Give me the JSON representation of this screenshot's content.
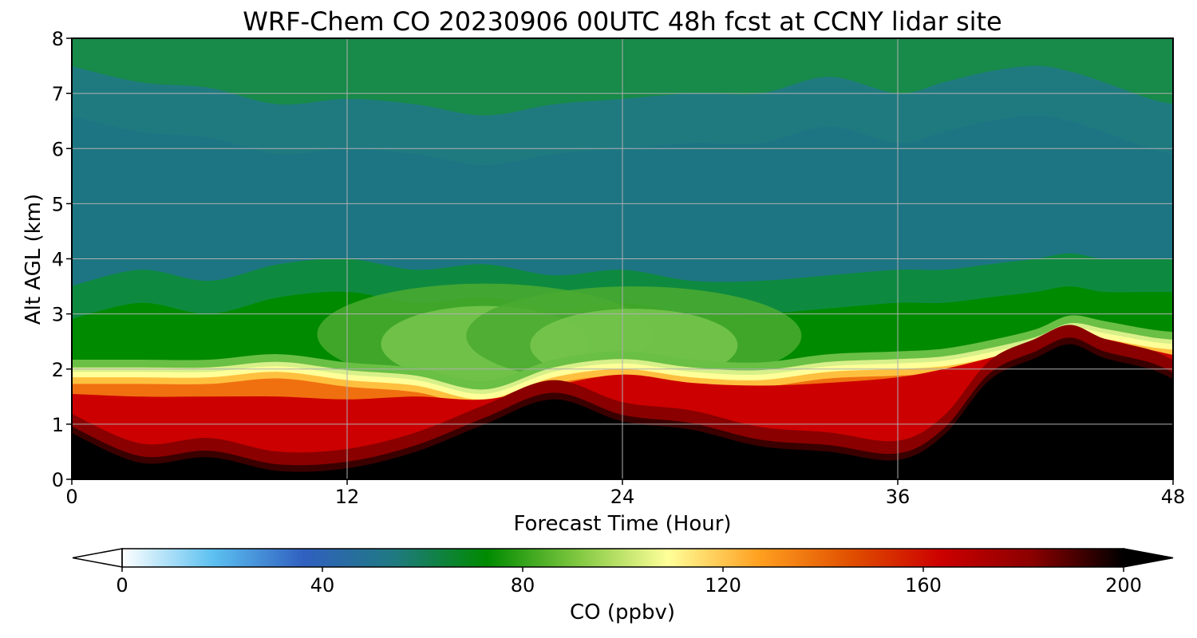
{
  "chart_data": {
    "type": "heatmap",
    "title": "WRF-Chem CO  20230906 00UTC 48h fcst at CCNY lidar site",
    "xlabel": "Forecast Time (Hour)",
    "ylabel": "Alt AGL (km)",
    "xlim": [
      0,
      48
    ],
    "ylim": [
      0,
      8
    ],
    "x_ticks": [
      "0",
      "12",
      "24",
      "36",
      "48"
    ],
    "y_ticks": [
      "0",
      "1",
      "2",
      "3",
      "4",
      "5",
      "6",
      "7",
      "8"
    ],
    "grid": true,
    "colorbar": {
      "label": "CO  (ppbv)",
      "range": [
        0,
        200
      ],
      "ticks": [
        "0",
        "40",
        "80",
        "120",
        "160",
        "200"
      ],
      "extend": "both",
      "colors": [
        "#ffffff",
        "#5cc0f0",
        "#3060c0",
        "#1f7a80",
        "#008a00",
        "#80c840",
        "#ffff99",
        "#ffa020",
        "#e05000",
        "#cc0000",
        "#8a0000",
        "#000000"
      ]
    },
    "profile": {
      "hours": [
        0,
        3,
        6,
        9,
        12,
        15,
        18,
        21,
        24,
        27,
        30,
        33,
        36,
        38,
        40,
        42,
        43.5,
        45,
        47,
        48
      ],
      "black_top": [
        0.85,
        0.3,
        0.4,
        0.15,
        0.2,
        0.5,
        1.0,
        1.45,
        1.05,
        0.9,
        0.6,
        0.5,
        0.35,
        0.8,
        1.8,
        2.2,
        2.45,
        2.2,
        2.0,
        1.8
      ],
      "red_top": [
        1.55,
        1.5,
        1.5,
        1.5,
        1.45,
        1.5,
        1.45,
        1.7,
        1.9,
        1.75,
        1.7,
        1.75,
        1.85,
        2.0,
        2.2,
        2.45,
        2.65,
        2.55,
        2.35,
        2.25
      ],
      "boundary": [
        1.95,
        1.95,
        1.95,
        2.05,
        1.9,
        1.8,
        1.55,
        1.95,
        2.1,
        1.95,
        1.9,
        2.05,
        2.1,
        2.15,
        2.3,
        2.5,
        2.75,
        2.65,
        2.5,
        2.45
      ],
      "green_top": [
        2.9,
        3.2,
        3.0,
        3.3,
        3.4,
        3.2,
        3.3,
        3.1,
        3.2,
        3.0,
        3.0,
        3.1,
        3.2,
        3.2,
        3.3,
        3.4,
        3.5,
        3.4,
        3.4,
        3.4
      ],
      "teal_top": [
        7.5,
        7.2,
        7.1,
        6.8,
        6.9,
        6.8,
        6.6,
        6.8,
        6.9,
        7.0,
        7.0,
        7.3,
        7.0,
        7.2,
        7.4,
        7.5,
        7.4,
        7.2,
        6.9,
        6.8
      ],
      "lightgreen_hump": [
        {
          "hour": 18,
          "top": 3.55
        },
        {
          "hour": 24.5,
          "top": 3.5
        }
      ]
    }
  }
}
